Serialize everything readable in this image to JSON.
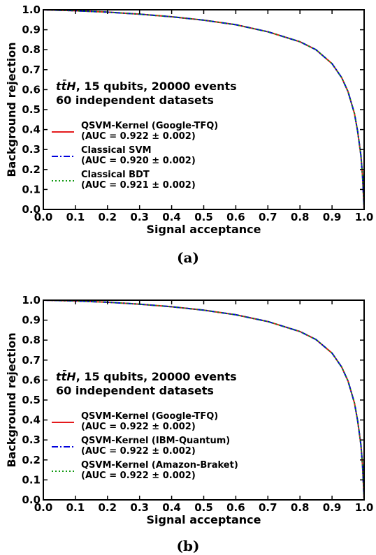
{
  "chart_data": [
    {
      "type": "line",
      "panel_label": "(a)",
      "xlabel": "Signal acceptance",
      "ylabel": "Background rejection",
      "xlim": [
        0.0,
        1.0
      ],
      "ylim": [
        0.0,
        1.0
      ],
      "xticks": [
        "0.0",
        "0.1",
        "0.2",
        "0.3",
        "0.4",
        "0.5",
        "0.6",
        "0.7",
        "0.8",
        "0.9",
        "1.0"
      ],
      "yticks": [
        "0.0",
        "0.1",
        "0.2",
        "0.3",
        "0.4",
        "0.5",
        "0.6",
        "0.7",
        "0.8",
        "0.9",
        "1.0"
      ],
      "annotation_line1_prefix": "tt̄H",
      "annotation_line1_rest": ", 15 qubits, 20000 events",
      "annotation_line2": "60 independent datasets",
      "legend_position": "center-left",
      "grid": false,
      "x": [
        0.0,
        0.1,
        0.2,
        0.3,
        0.4,
        0.5,
        0.6,
        0.7,
        0.8,
        0.85,
        0.9,
        0.93,
        0.95,
        0.97,
        0.98,
        0.99,
        0.995,
        1.0
      ],
      "series": [
        {
          "name": "QSVM-Kernel (Google-TFQ)",
          "sub": "(AUC = 0.922 ± 0.002)",
          "color": "#e41a1c",
          "style": "solid",
          "values": [
            1.0,
            0.995,
            0.988,
            0.978,
            0.965,
            0.948,
            0.925,
            0.89,
            0.84,
            0.8,
            0.73,
            0.66,
            0.59,
            0.48,
            0.39,
            0.27,
            0.17,
            0.0
          ]
        },
        {
          "name": "Classical SVM",
          "sub": "(AUC = 0.920 ± 0.002)",
          "color": "#0000dd",
          "style": "dashdot",
          "values": [
            1.0,
            0.995,
            0.988,
            0.978,
            0.965,
            0.948,
            0.925,
            0.89,
            0.84,
            0.8,
            0.73,
            0.66,
            0.59,
            0.48,
            0.39,
            0.27,
            0.17,
            0.0
          ]
        },
        {
          "name": "Classical BDT",
          "sub": "(AUC = 0.921 ± 0.002)",
          "color": "#119911",
          "style": "dotted",
          "values": [
            1.0,
            0.995,
            0.988,
            0.978,
            0.965,
            0.948,
            0.925,
            0.89,
            0.84,
            0.8,
            0.73,
            0.66,
            0.59,
            0.48,
            0.39,
            0.27,
            0.17,
            0.0
          ]
        }
      ]
    },
    {
      "type": "line",
      "panel_label": "(b)",
      "xlabel": "Signal acceptance",
      "ylabel": "Background rejection",
      "xlim": [
        0.0,
        1.0
      ],
      "ylim": [
        0.0,
        1.0
      ],
      "xticks": [
        "0.0",
        "0.1",
        "0.2",
        "0.3",
        "0.4",
        "0.5",
        "0.6",
        "0.7",
        "0.8",
        "0.9",
        "1.0"
      ],
      "yticks": [
        "0.0",
        "0.1",
        "0.2",
        "0.3",
        "0.4",
        "0.5",
        "0.6",
        "0.7",
        "0.8",
        "0.9",
        "1.0"
      ],
      "annotation_line1_prefix": "tt̄H",
      "annotation_line1_rest": ", 15 qubits, 20000 events",
      "annotation_line2": "60 independent datasets",
      "legend_position": "center-left",
      "grid": false,
      "x": [
        0.0,
        0.1,
        0.2,
        0.3,
        0.4,
        0.5,
        0.6,
        0.7,
        0.8,
        0.85,
        0.9,
        0.93,
        0.95,
        0.97,
        0.98,
        0.99,
        0.995,
        1.0
      ],
      "series": [
        {
          "name": "QSVM-Kernel (Google-TFQ)",
          "sub": "(AUC = 0.922 ± 0.002)",
          "color": "#e41a1c",
          "style": "solid",
          "values": [
            1.0,
            0.996,
            0.99,
            0.98,
            0.967,
            0.95,
            0.927,
            0.893,
            0.843,
            0.803,
            0.735,
            0.665,
            0.595,
            0.485,
            0.395,
            0.275,
            0.175,
            0.0
          ]
        },
        {
          "name": "QSVM-Kernel (IBM-Quantum)",
          "sub": "(AUC = 0.922 ± 0.002)",
          "color": "#0000dd",
          "style": "dashdot",
          "values": [
            1.0,
            0.996,
            0.99,
            0.98,
            0.967,
            0.95,
            0.927,
            0.893,
            0.843,
            0.803,
            0.735,
            0.665,
            0.595,
            0.485,
            0.395,
            0.275,
            0.175,
            0.0
          ]
        },
        {
          "name": "QSVM-Kernel (Amazon-Braket)",
          "sub": "(AUC = 0.922 ± 0.002)",
          "color": "#119911",
          "style": "dotted",
          "values": [
            1.0,
            0.996,
            0.99,
            0.98,
            0.967,
            0.95,
            0.927,
            0.893,
            0.843,
            0.803,
            0.735,
            0.665,
            0.595,
            0.485,
            0.395,
            0.275,
            0.175,
            0.0
          ]
        }
      ]
    }
  ]
}
